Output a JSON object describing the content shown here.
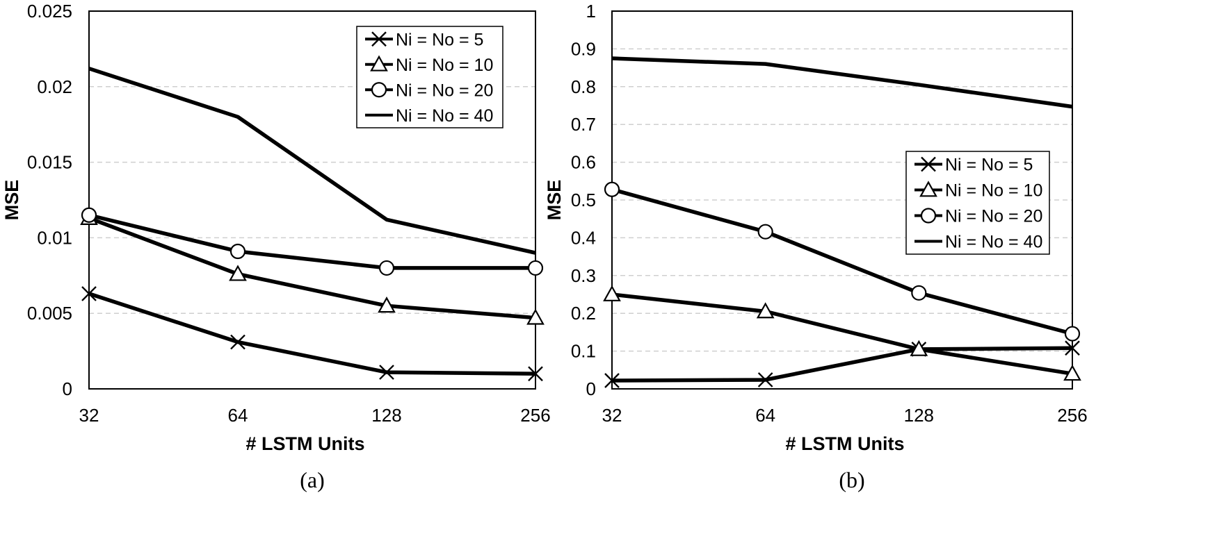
{
  "chart_data": [
    {
      "type": "line",
      "caption": "(a)",
      "xlabel": "# LSTM Units",
      "ylabel": "MSE",
      "categories": [
        "32",
        "64",
        "128",
        "256"
      ],
      "ylim": [
        0,
        0.025
      ],
      "yticks": [
        "0",
        "0.005",
        "0.01",
        "0.015",
        "0.02",
        "0.025"
      ],
      "legend_position": "top-right",
      "grid": true,
      "series": [
        {
          "name": "Ni = No = 5",
          "marker": "x",
          "values": [
            0.0063,
            0.0031,
            0.0011,
            0.001
          ]
        },
        {
          "name": "Ni = No = 10",
          "marker": "triangle",
          "values": [
            0.0113,
            0.0076,
            0.0055,
            0.0047
          ]
        },
        {
          "name": "Ni = No = 20",
          "marker": "circle",
          "values": [
            0.0115,
            0.0091,
            0.008,
            0.008
          ]
        },
        {
          "name": "Ni = No = 40",
          "marker": "none",
          "values": [
            0.0212,
            0.018,
            0.0112,
            0.009
          ]
        }
      ]
    },
    {
      "type": "line",
      "caption": "(b)",
      "xlabel": "# LSTM Units",
      "ylabel": "MSE",
      "categories": [
        "32",
        "64",
        "128",
        "256"
      ],
      "ylim": [
        0,
        1
      ],
      "yticks": [
        "0",
        "0.1",
        "0.2",
        "0.3",
        "0.4",
        "0.5",
        "0.6",
        "0.7",
        "0.8",
        "0.9",
        "1"
      ],
      "legend_position": "center-right",
      "grid": true,
      "series": [
        {
          "name": "Ni = No = 5",
          "marker": "x",
          "values": [
            0.022,
            0.024,
            0.105,
            0.108
          ]
        },
        {
          "name": "Ni = No = 10",
          "marker": "triangle",
          "values": [
            0.25,
            0.205,
            0.105,
            0.04
          ]
        },
        {
          "name": "Ni = No = 20",
          "marker": "circle",
          "values": [
            0.528,
            0.416,
            0.254,
            0.146
          ]
        },
        {
          "name": "Ni = No = 40",
          "marker": "none",
          "values": [
            0.875,
            0.86,
            0.805,
            0.747
          ]
        }
      ]
    }
  ]
}
